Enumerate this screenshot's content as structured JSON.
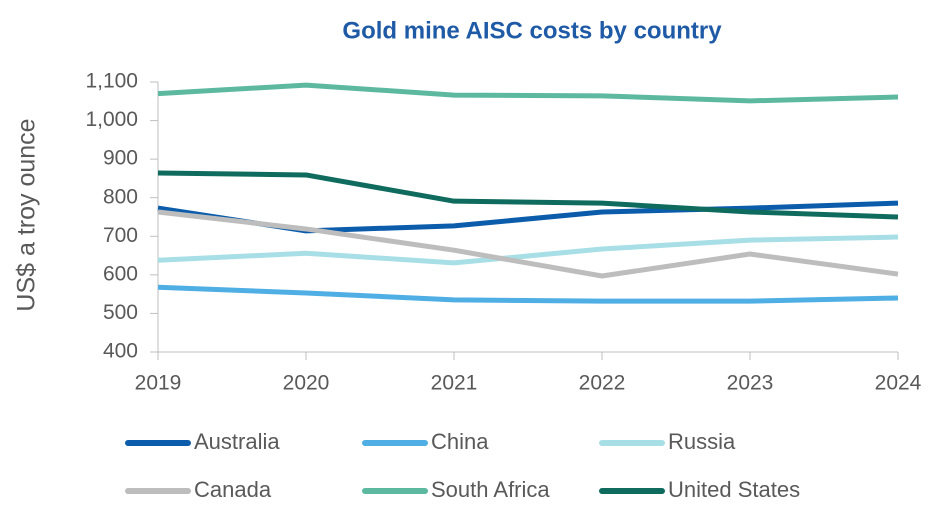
{
  "chart_data": {
    "type": "line",
    "title": "Gold mine AISC costs by country",
    "y_label": "US$ a troy ounce",
    "categories": [
      "2019",
      "2020",
      "2021",
      "2022",
      "2023",
      "2024"
    ],
    "series": [
      {
        "name": "Australia",
        "color": "#0b5cab",
        "values": [
          773,
          714,
          727,
          763,
          773,
          786
        ]
      },
      {
        "name": "China",
        "color": "#4faee3",
        "values": [
          568,
          553,
          535,
          532,
          532,
          540
        ]
      },
      {
        "name": "Russia",
        "color": "#a8dfe6",
        "values": [
          638,
          656,
          631,
          667,
          690,
          698
        ]
      },
      {
        "name": "Canada",
        "color": "#bdbdbd",
        "values": [
          763,
          719,
          664,
          597,
          654,
          602
        ]
      },
      {
        "name": "South Africa",
        "color": "#5cb9a0",
        "values": [
          1070,
          1092,
          1066,
          1064,
          1051,
          1061
        ]
      },
      {
        "name": "United States",
        "color": "#0f6b5d",
        "values": [
          864,
          859,
          791,
          786,
          763,
          750
        ]
      }
    ],
    "ylim": [
      400,
      1100
    ],
    "yticks": [
      400,
      500,
      600,
      700,
      800,
      900,
      {
        "value": 1000,
        "label": "1,000"
      },
      {
        "value": 1100,
        "label": "1,100"
      }
    ]
  }
}
